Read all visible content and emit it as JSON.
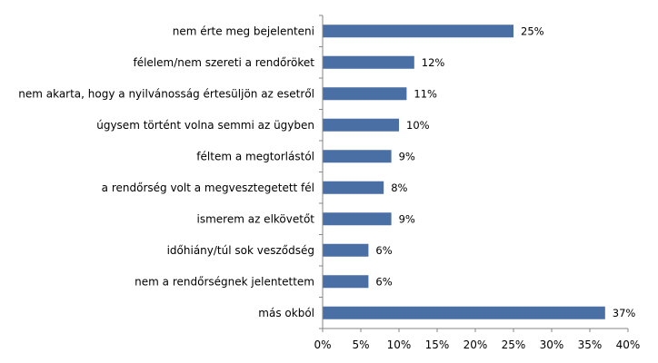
{
  "chart_data": {
    "type": "bar",
    "orientation": "horizontal",
    "categories": [
      "nem érte meg bejelenteni",
      "félelem/nem szereti a rendőröket",
      "nem akarta, hogy a nyilvánosság értesüljön az esetről",
      "úgysem történt volna semmi az ügyben",
      "féltem a megtorlástól",
      "a rendőrség volt a megvesztegetett fél",
      "ismerem az elkövetőt",
      "időhiány/túl sok vesződség",
      "nem a rendőrségnek jelentettem",
      "más okból"
    ],
    "values": [
      25,
      12,
      11,
      10,
      9,
      8,
      9,
      6,
      6,
      37
    ],
    "value_labels": [
      "25%",
      "12%",
      "11%",
      "10%",
      "9%",
      "8%",
      "9%",
      "6%",
      "6%",
      "37%"
    ],
    "xlim": [
      0,
      40
    ],
    "x_ticks": [
      "0%",
      "5%",
      "10%",
      "15%",
      "20%",
      "25%",
      "30%",
      "35%",
      "40%"
    ],
    "grid": false,
    "bar_color": "#4a6fa5"
  }
}
